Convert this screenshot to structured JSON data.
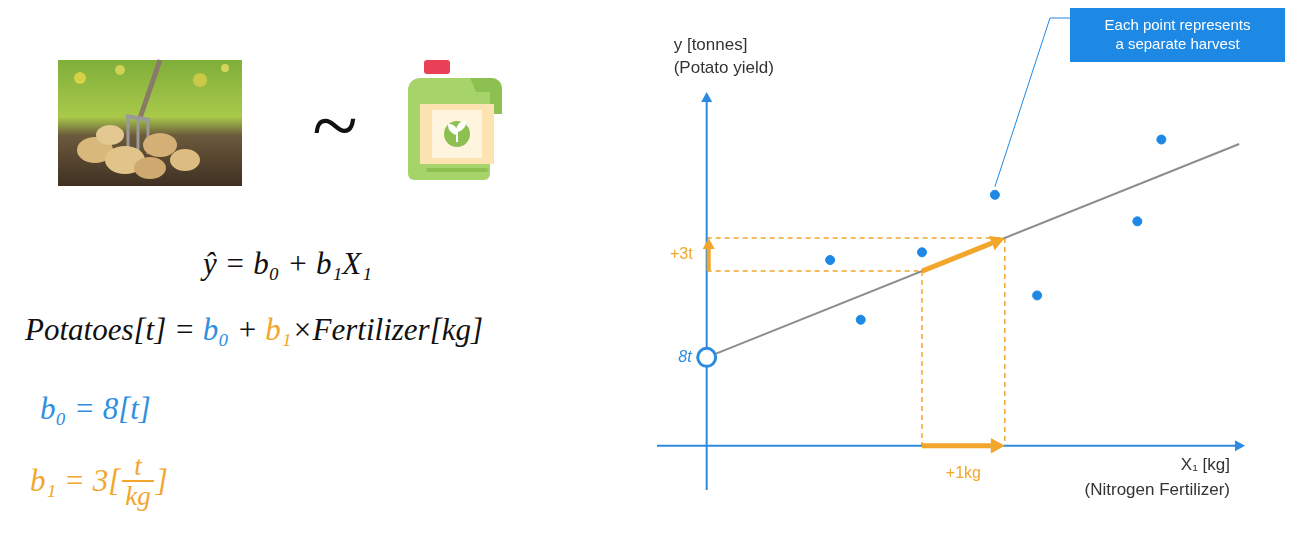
{
  "left_panel": {
    "relation": "~",
    "equation": "ŷ = b₀ + b₁X₁",
    "model": [
      {
        "text": "Potatoes[t] = "
      },
      {
        "text": "b₀",
        "color": "#2e8fe0"
      },
      {
        "text": " + "
      },
      {
        "text": "b₁",
        "color": "#f2a62b"
      },
      {
        "text": "×Fertilizer[kg]"
      }
    ],
    "coefficients": [
      {
        "color": "#2e8fe0",
        "parts": [
          "b₀ = 8[t]"
        ]
      },
      {
        "color": "#f2a62b",
        "parts": [
          "b₁ = 3[",
          {
            "numerator": "t",
            "denominator": "kg"
          },
          "]"
        ]
      }
    ]
  },
  "chart_data": {
    "type": "scatter",
    "x_label": [
      "X₁ [kg]",
      "(Nitrogen Fertilizer)"
    ],
    "y_label": [
      "y [tonnes]",
      "(Potato yield)"
    ],
    "x": [
      1.49,
      1.86,
      2.6,
      3.48,
      3.99,
      5.2,
      5.49
    ],
    "values": [
      16.8,
      11.4,
      17.5,
      22.7,
      13.6,
      20.3,
      27.7
    ],
    "color": "#1e88e5",
    "marker": "circle",
    "trend_line": {
      "x": [
        0,
        6.43
      ],
      "values": [
        8,
        27.3
      ],
      "color": "#8c8c8c",
      "line_style": "solid"
    },
    "annotations": {
      "intercept": {
        "x": 0,
        "y": 8,
        "label": "8t",
        "color": "#2a8be0"
      },
      "step": {
        "x": 2.6,
        "y": 15.8,
        "dx": 1,
        "dy": 3,
        "x_label": "+1kg",
        "y_label": "+3t",
        "color": "#f2a62b"
      },
      "callout": {
        "lines": [
          "Each point represents",
          "a separate harvest"
        ],
        "color": "#1e88e5"
      }
    },
    "xlim": [
      -0.6,
      6.5
    ],
    "ylim": [
      -4,
      32
    ],
    "xticks": [],
    "yticks": [],
    "grid": false,
    "tick_labels": false
  }
}
